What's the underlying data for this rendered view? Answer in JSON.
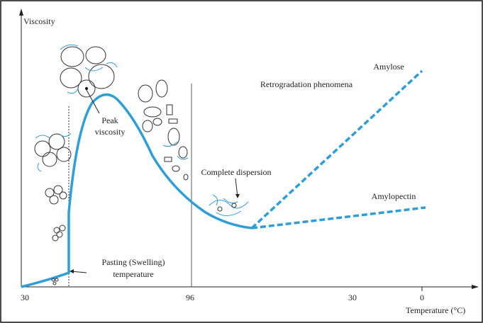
{
  "axes": {
    "y_label": "Viscosity",
    "x_label": "Temperature (°C)",
    "x_ticks": [
      "30",
      "96",
      "30",
      "0"
    ]
  },
  "annotations": {
    "peak": [
      "Peak",
      "viscosity"
    ],
    "retrogradation": "Retrogradation phenomena",
    "amylose": "Amylose",
    "dispersion": "Complete dispersion",
    "amylopectin": "Amylopectin",
    "pasting": [
      "Pasting (Swelling)",
      "temperature"
    ]
  }
}
